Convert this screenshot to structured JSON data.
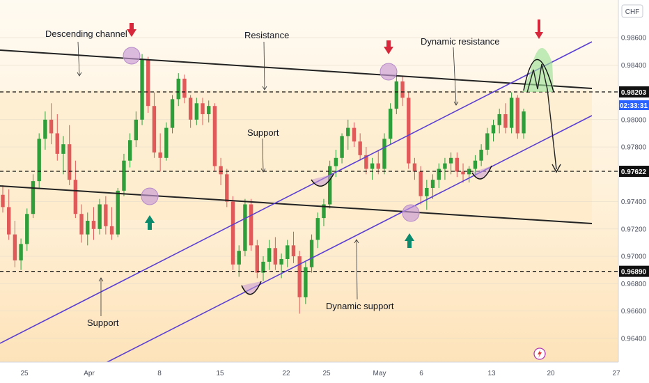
{
  "currency": "CHF",
  "countdown": "02:33:31",
  "price_axis": {
    "ticks": [
      "0.98600",
      "0.98400",
      "0.98000",
      "0.97800",
      "0.97400",
      "0.97200",
      "0.97000",
      "0.96800",
      "0.96600",
      "0.96400"
    ],
    "tick_values": [
      0.986,
      0.984,
      0.98,
      0.978,
      0.974,
      0.972,
      0.97,
      0.968,
      0.966,
      0.964
    ],
    "tags": [
      {
        "label": "0.98203",
        "value": 0.98203,
        "style": "dark"
      },
      {
        "label": "0.97622",
        "value": 0.97622,
        "style": "dark"
      },
      {
        "label": "0.96890",
        "value": 0.9689,
        "style": "dark"
      }
    ]
  },
  "time_axis": {
    "labels": [
      "25",
      "Apr",
      "8",
      "15",
      "22",
      "25",
      "May",
      "6",
      "13",
      "20",
      "27"
    ]
  },
  "annotations": {
    "descending_channel": "Descending channel",
    "resistance": "Resistance",
    "dynamic_resistance": "Dynamic resistance",
    "support_mid": "Support",
    "support_low": "Support",
    "dynamic_support": "Dynamic support"
  },
  "colors": {
    "bull": "#26a69a",
    "bear": "#ef5350",
    "bull_candle": "#2e9e3a",
    "bear_candle": "#e05a5a",
    "zone": "#fde9c4",
    "channel_line": "#222222",
    "dynamic_line": "#5b3fd1",
    "down_arrow": "#d6283a",
    "up_arrow": "#0b8a6d",
    "circle": "#c79ad6"
  },
  "chart_data": {
    "type": "candlestick",
    "symbol_currency": "CHF",
    "ylim": [
      0.9625,
      0.988
    ],
    "horizontal_levels": [
      0.98203,
      0.97622,
      0.9689
    ],
    "ohlc": [
      [
        0.9745,
        0.9752,
        0.9732,
        0.9736
      ],
      [
        0.9736,
        0.9749,
        0.9712,
        0.9716
      ],
      [
        0.9716,
        0.9726,
        0.9692,
        0.9697
      ],
      [
        0.9697,
        0.9713,
        0.969,
        0.9709
      ],
      [
        0.9709,
        0.9735,
        0.9704,
        0.9731
      ],
      [
        0.9731,
        0.976,
        0.9728,
        0.9755
      ],
      [
        0.9755,
        0.979,
        0.975,
        0.9786
      ],
      [
        0.9786,
        0.9806,
        0.9778,
        0.98
      ],
      [
        0.98,
        0.9812,
        0.9782,
        0.979
      ],
      [
        0.979,
        0.9804,
        0.977,
        0.9775
      ],
      [
        0.9775,
        0.9788,
        0.976,
        0.9782
      ],
      [
        0.9782,
        0.9796,
        0.9752,
        0.9756
      ],
      [
        0.9756,
        0.977,
        0.9728,
        0.9731
      ],
      [
        0.9731,
        0.9738,
        0.971,
        0.9716
      ],
      [
        0.9716,
        0.9732,
        0.9708,
        0.9726
      ],
      [
        0.9726,
        0.9736,
        0.9712,
        0.972
      ],
      [
        0.972,
        0.9742,
        0.9716,
        0.9738
      ],
      [
        0.9738,
        0.9744,
        0.9716,
        0.9722
      ],
      [
        0.9722,
        0.9736,
        0.9712,
        0.9716
      ],
      [
        0.9716,
        0.975,
        0.9714,
        0.9748
      ],
      [
        0.9748,
        0.9775,
        0.9744,
        0.977
      ],
      [
        0.977,
        0.979,
        0.9765,
        0.9785
      ],
      [
        0.9785,
        0.9806,
        0.978,
        0.98
      ],
      [
        0.98,
        0.9848,
        0.9796,
        0.9844
      ],
      [
        0.9844,
        0.9846,
        0.9805,
        0.981
      ],
      [
        0.981,
        0.982,
        0.9772,
        0.9776
      ],
      [
        0.9776,
        0.979,
        0.9762,
        0.9772
      ],
      [
        0.9772,
        0.9798,
        0.977,
        0.9794
      ],
      [
        0.9794,
        0.9818,
        0.979,
        0.9815
      ],
      [
        0.9815,
        0.9834,
        0.981,
        0.983
      ],
      [
        0.983,
        0.9833,
        0.9812,
        0.9816
      ],
      [
        0.9816,
        0.9818,
        0.9794,
        0.98
      ],
      [
        0.98,
        0.9816,
        0.9796,
        0.9812
      ],
      [
        0.9812,
        0.9816,
        0.9796,
        0.9804
      ],
      [
        0.9804,
        0.9814,
        0.9798,
        0.981
      ],
      [
        0.981,
        0.9812,
        0.9762,
        0.9766
      ],
      [
        0.9766,
        0.9772,
        0.9752,
        0.976
      ],
      [
        0.976,
        0.9764,
        0.9736,
        0.974
      ],
      [
        0.974,
        0.9744,
        0.969,
        0.9694
      ],
      [
        0.9694,
        0.9708,
        0.9685,
        0.9704
      ],
      [
        0.9704,
        0.9742,
        0.97,
        0.9738
      ],
      [
        0.9738,
        0.9742,
        0.9704,
        0.9708
      ],
      [
        0.9708,
        0.9712,
        0.9684,
        0.9688
      ],
      [
        0.9688,
        0.97,
        0.9682,
        0.9696
      ],
      [
        0.9696,
        0.9712,
        0.969,
        0.9706
      ],
      [
        0.9706,
        0.9714,
        0.969,
        0.9694
      ],
      [
        0.9694,
        0.9702,
        0.9684,
        0.9698
      ],
      [
        0.9698,
        0.9712,
        0.9692,
        0.9708
      ],
      [
        0.9708,
        0.9718,
        0.9695,
        0.97
      ],
      [
        0.97,
        0.9704,
        0.9658,
        0.967
      ],
      [
        0.967,
        0.9696,
        0.9665,
        0.9692
      ],
      [
        0.9692,
        0.9716,
        0.9688,
        0.9712
      ],
      [
        0.9712,
        0.9732,
        0.9706,
        0.9728
      ],
      [
        0.9728,
        0.9742,
        0.9722,
        0.9738
      ],
      [
        0.9738,
        0.977,
        0.9735,
        0.9766
      ],
      [
        0.9766,
        0.9778,
        0.9758,
        0.9772
      ],
      [
        0.9772,
        0.979,
        0.9768,
        0.9788
      ],
      [
        0.9788,
        0.98,
        0.9778,
        0.9794
      ],
      [
        0.9794,
        0.9798,
        0.978,
        0.9784
      ],
      [
        0.9784,
        0.979,
        0.977,
        0.9774
      ],
      [
        0.9774,
        0.978,
        0.976,
        0.9764
      ],
      [
        0.9764,
        0.9772,
        0.9756,
        0.9768
      ],
      [
        0.9768,
        0.9778,
        0.976,
        0.9764
      ],
      [
        0.9764,
        0.979,
        0.976,
        0.9786
      ],
      [
        0.9786,
        0.9812,
        0.9782,
        0.9808
      ],
      [
        0.9808,
        0.9834,
        0.9804,
        0.9828
      ],
      [
        0.9828,
        0.9832,
        0.981,
        0.9816
      ],
      [
        0.9816,
        0.982,
        0.9764,
        0.9768
      ],
      [
        0.9768,
        0.9772,
        0.9756,
        0.9762
      ],
      [
        0.9762,
        0.9766,
        0.9738,
        0.9744
      ],
      [
        0.9744,
        0.9756,
        0.9734,
        0.975
      ],
      [
        0.975,
        0.976,
        0.9742,
        0.9756
      ],
      [
        0.9756,
        0.9768,
        0.975,
        0.9764
      ],
      [
        0.9764,
        0.9772,
        0.9756,
        0.9768
      ],
      [
        0.9768,
        0.9776,
        0.976,
        0.9772
      ],
      [
        0.9772,
        0.9776,
        0.9758,
        0.9762
      ],
      [
        0.9762,
        0.9768,
        0.9754,
        0.976
      ],
      [
        0.976,
        0.9766,
        0.9754,
        0.9764
      ],
      [
        0.9764,
        0.9774,
        0.976,
        0.977
      ],
      [
        0.977,
        0.9782,
        0.9766,
        0.9778
      ],
      [
        0.9778,
        0.9794,
        0.9774,
        0.979
      ],
      [
        0.979,
        0.98,
        0.9784,
        0.9796
      ],
      [
        0.9796,
        0.9808,
        0.979,
        0.9804
      ],
      [
        0.9804,
        0.9812,
        0.979,
        0.9794
      ],
      [
        0.9794,
        0.982,
        0.979,
        0.9816
      ],
      [
        0.9816,
        0.9818,
        0.9786,
        0.979
      ],
      [
        0.979,
        0.9808,
        0.9786,
        0.9806
      ]
    ],
    "dynamic_channel": {
      "lower": [
        [
          0,
          0.9581
        ],
        [
          1,
          0.9826
        ]
      ],
      "upper": [
        [
          0,
          0.9639
        ],
        [
          1,
          0.9876
        ]
      ]
    },
    "descending_channel": {
      "upper": [
        [
          0,
          0.9852
        ],
        [
          1,
          0.9826
        ]
      ],
      "lower": [
        [
          0,
          0.975
        ],
        [
          1,
          0.9726
        ]
      ]
    }
  }
}
